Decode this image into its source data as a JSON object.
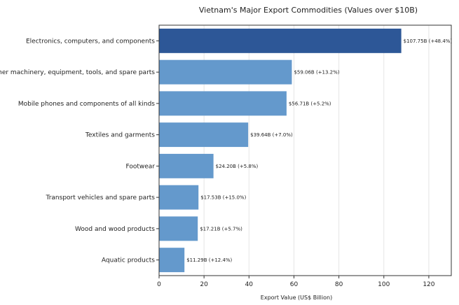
{
  "chart_data": {
    "type": "bar",
    "orientation": "horizontal",
    "title": "Vietnam's Major Export Commodities (Values over $10B)",
    "xlabel": "Export Value (US$ Billion)",
    "ylabel": "",
    "xlim": [
      0,
      130
    ],
    "xticks": [
      0,
      20,
      40,
      60,
      80,
      100,
      120
    ],
    "grid": "vertical",
    "categories": [
      "Electronics, computers, and components",
      "Other machinery, equipment, tools, and spare parts",
      "Mobile phones and components of all kinds",
      "Textiles and garments",
      "Footwear",
      "Transport vehicles and spare parts",
      "Wood and wood products",
      "Aquatic products"
    ],
    "values": [
      107.75,
      59.06,
      56.71,
      39.64,
      24.2,
      17.53,
      17.21,
      11.29
    ],
    "data_labels": [
      "$107.75B (+48.4%)",
      "$59.06B (+13.2%)",
      "$56.71B (+5.2%)",
      "$39.64B (+7.0%)",
      "$24.20B (+5.8%)",
      "$17.53B (+15.0%)",
      "$17.21B (+5.7%)",
      "$11.29B (+12.4%)"
    ],
    "colors": {
      "highlight": "#2d5797",
      "bar": "#6499cc",
      "grid": "#e6e6e6",
      "axis": "#333333"
    }
  }
}
